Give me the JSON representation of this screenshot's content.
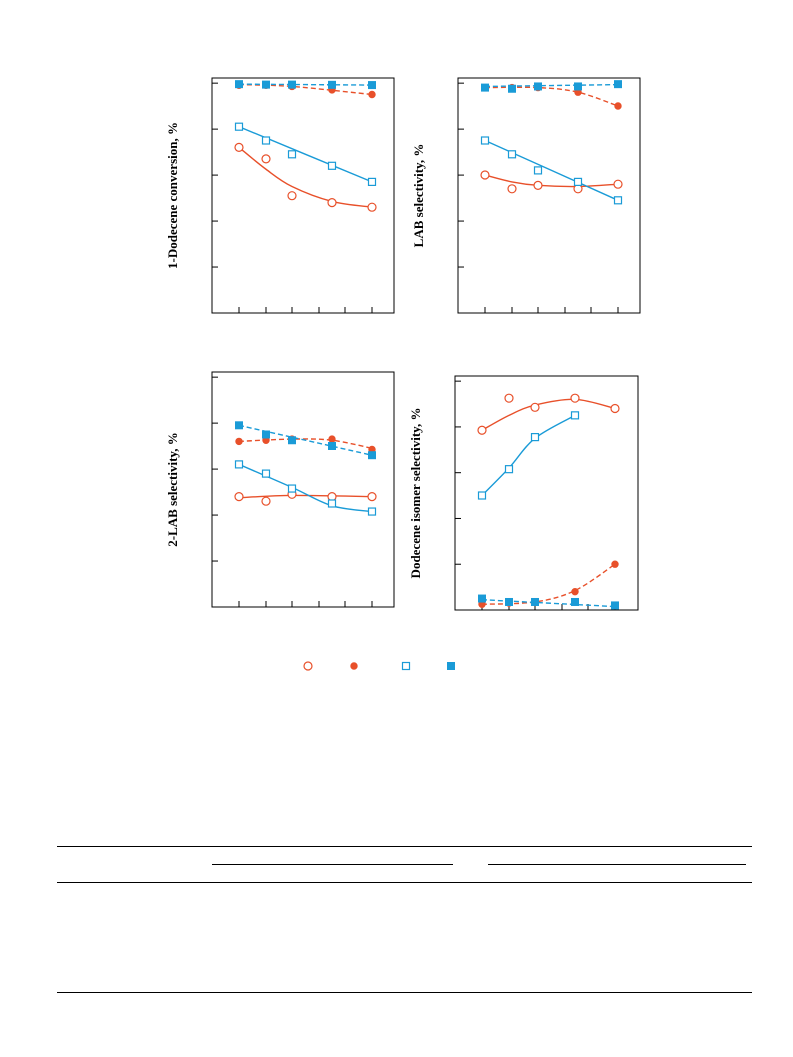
{
  "colors": {
    "red": "#e8502a",
    "blue": "#1a9bd7",
    "axis": "#000000"
  },
  "chart_data": [
    {
      "type": "scatter",
      "panel": "top-left",
      "ylabel": "1-Dodecene conversion, %",
      "xlim": [
        0,
        10
      ],
      "ylim": [
        0,
        100
      ],
      "ytick_count": 5,
      "xtick_count": 6,
      "series": [
        {
          "marker": "open-circle",
          "color": "red",
          "line": "solid",
          "x": [
            1,
            2,
            3,
            4.5,
            6
          ],
          "y": [
            72,
            67,
            51,
            48,
            46
          ],
          "curve": [
            [
              1,
              72
            ],
            [
              2,
              62.5
            ],
            [
              3,
              55
            ],
            [
              4.5,
              48.5
            ],
            [
              6,
              46
            ]
          ]
        },
        {
          "marker": "filled-circle",
          "color": "red",
          "line": "dashed",
          "x": [
            1,
            2,
            3,
            4.5,
            6
          ],
          "y": [
            99,
            99,
            98.5,
            97,
            95
          ],
          "curve": [
            [
              1,
              99.3
            ],
            [
              3,
              98.5
            ],
            [
              6,
              95
            ]
          ]
        },
        {
          "marker": "open-square",
          "color": "blue",
          "line": "solid",
          "x": [
            1,
            2,
            3,
            4.5,
            6
          ],
          "y": [
            81,
            75,
            69,
            64,
            57
          ],
          "curve": [
            [
              1,
              81
            ],
            [
              6,
              57
            ]
          ]
        },
        {
          "marker": "filled-square",
          "color": "blue",
          "line": "dashed",
          "x": [
            1,
            2,
            3,
            4.5,
            6
          ],
          "y": [
            99.5,
            99.3,
            99.3,
            99.2,
            99.1
          ],
          "curve": [
            [
              1,
              99.5
            ],
            [
              6,
              99.1
            ]
          ]
        }
      ]
    },
    {
      "type": "scatter",
      "panel": "top-right",
      "ylabel": "LAB selectivity, %",
      "xlim": [
        0,
        10
      ],
      "ylim": [
        0,
        100
      ],
      "ytick_count": 5,
      "xtick_count": 6,
      "series": [
        {
          "marker": "open-circle",
          "color": "red",
          "line": "solid",
          "x": [
            1,
            2,
            3,
            4.5,
            6
          ],
          "y": [
            60,
            54,
            55.5,
            54,
            56
          ],
          "curve": [
            [
              1,
              60
            ],
            [
              2,
              57
            ],
            [
              3,
              55.5
            ],
            [
              4.5,
              55
            ],
            [
              6,
              56
            ]
          ]
        },
        {
          "marker": "filled-circle",
          "color": "red",
          "line": "dashed",
          "x": [
            1,
            2,
            3,
            4.5,
            6
          ],
          "y": [
            98,
            98,
            98,
            96,
            90
          ],
          "curve": [
            [
              1,
              98
            ],
            [
              3,
              98
            ],
            [
              4.5,
              96
            ],
            [
              6,
              90
            ]
          ]
        },
        {
          "marker": "open-square",
          "color": "blue",
          "line": "solid",
          "x": [
            1,
            2,
            3,
            4.5,
            6
          ],
          "y": [
            75,
            69,
            62,
            57,
            49
          ],
          "curve": [
            [
              1,
              75
            ],
            [
              6,
              49
            ]
          ]
        },
        {
          "marker": "filled-square",
          "color": "blue",
          "line": "dashed",
          "x": [
            1,
            2,
            3,
            4.5,
            6
          ],
          "y": [
            98,
            97.5,
            98.5,
            98.5,
            99.5
          ],
          "curve": [
            [
              1,
              98.5
            ],
            [
              6,
              99.3
            ]
          ]
        }
      ]
    },
    {
      "type": "scatter",
      "panel": "bottom-left",
      "ylabel": "2-LAB selectivity, %",
      "xlim": [
        0,
        10
      ],
      "ylim": [
        0,
        100
      ],
      "ytick_count": 5,
      "xtick_count": 6,
      "series": [
        {
          "marker": "open-circle",
          "color": "red",
          "line": "solid",
          "x": [
            1,
            2,
            3,
            4.5,
            6
          ],
          "y": [
            48,
            46,
            49,
            48,
            48
          ],
          "curve": [
            [
              1,
              47.5
            ],
            [
              3,
              48.5
            ],
            [
              6,
              48
            ]
          ]
        },
        {
          "marker": "filled-circle",
          "color": "red",
          "line": "dashed",
          "x": [
            1,
            2,
            3,
            4.5,
            6
          ],
          "y": [
            72,
            72.5,
            73,
            73,
            68.5
          ],
          "curve": [
            [
              1,
              72
            ],
            [
              3,
              73
            ],
            [
              4.5,
              72.5
            ],
            [
              6,
              69
            ]
          ]
        },
        {
          "marker": "open-square",
          "color": "blue",
          "line": "solid",
          "x": [
            1,
            2,
            3,
            4.5,
            6
          ],
          "y": [
            62,
            58,
            51.5,
            45,
            41.5
          ],
          "curve": [
            [
              1,
              62
            ],
            [
              3,
              52
            ],
            [
              4.5,
              44
            ],
            [
              6,
              41.5
            ]
          ]
        },
        {
          "marker": "filled-square",
          "color": "blue",
          "line": "dashed",
          "x": [
            1,
            2,
            3,
            4.5,
            6
          ],
          "y": [
            79,
            75,
            72.5,
            70,
            66
          ],
          "curve": [
            [
              1,
              79
            ],
            [
              6,
              66
            ]
          ]
        }
      ]
    },
    {
      "type": "scatter",
      "panel": "bottom-right",
      "ylabel": "Dodecene isomer selectivity, %",
      "xlim": [
        0,
        10
      ],
      "ylim": [
        0,
        100
      ],
      "ytick_count": 5,
      "xtick_count": 6,
      "series": [
        {
          "marker": "open-circle",
          "color": "red",
          "line": "solid",
          "x": [
            1,
            2,
            3,
            4.5,
            6
          ],
          "y": [
            78.5,
            92.5,
            88.5,
            92.5,
            88
          ],
          "curve": [
            [
              1,
              78.5
            ],
            [
              2,
              85
            ],
            [
              3,
              89.5
            ],
            [
              4.5,
              92
            ],
            [
              6,
              88
            ]
          ]
        },
        {
          "marker": "filled-circle",
          "color": "red",
          "line": "dashed",
          "x": [
            1,
            2,
            3,
            4.5,
            6
          ],
          "y": [
            2.5,
            3,
            3.5,
            8,
            20
          ],
          "curve": [
            [
              1,
              2.5
            ],
            [
              3,
              3.5
            ],
            [
              4.5,
              8.5
            ],
            [
              6,
              20
            ]
          ]
        },
        {
          "marker": "open-square",
          "color": "blue",
          "line": "solid",
          "x": [
            1,
            2,
            3,
            4.5
          ],
          "y": [
            50,
            61.5,
            75.5,
            85
          ],
          "curve": [
            [
              1,
              50
            ],
            [
              2,
              62
            ],
            [
              3,
              75
            ],
            [
              4.5,
              85
            ]
          ]
        },
        {
          "marker": "filled-square",
          "color": "blue",
          "line": "dashed",
          "x": [
            1,
            2,
            3,
            4.5,
            6
          ],
          "y": [
            5,
            3.5,
            3.5,
            3.5,
            2
          ],
          "curve": [
            [
              1,
              4.5
            ],
            [
              6,
              1.5
            ]
          ]
        }
      ]
    }
  ],
  "legend": {
    "placement": "bottom-center",
    "entries": [
      {
        "marker": "open-circle",
        "color": "red"
      },
      {
        "marker": "filled-circle",
        "color": "red"
      },
      {
        "marker": "open-square",
        "color": "blue"
      },
      {
        "marker": "filled-square",
        "color": "blue"
      }
    ]
  }
}
